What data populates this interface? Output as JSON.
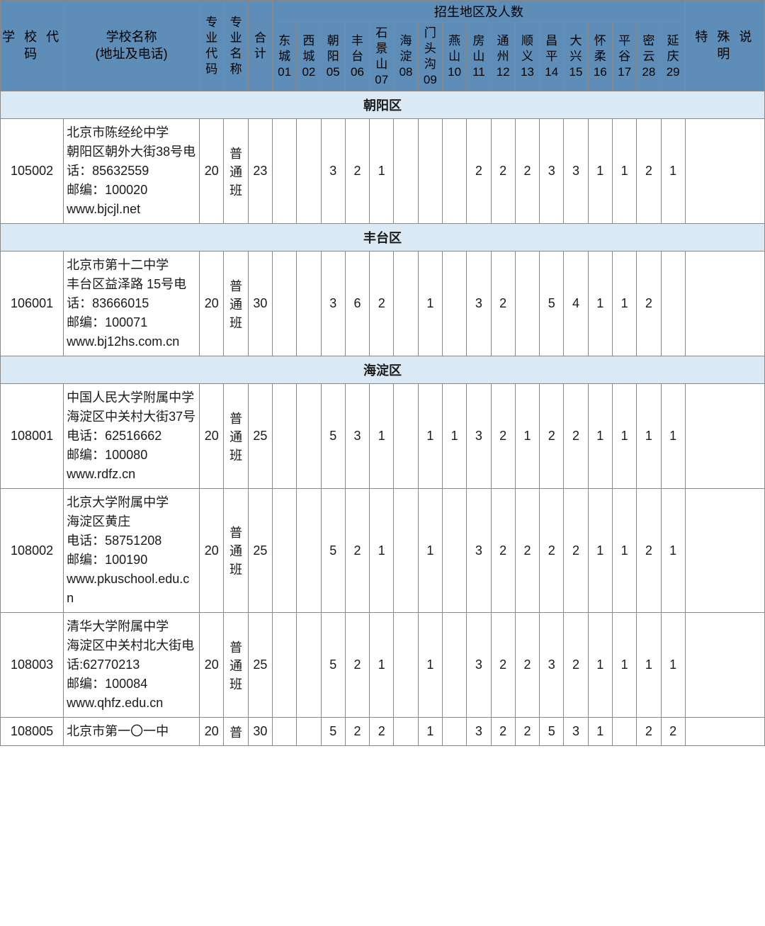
{
  "header": {
    "school_code": "学校代码",
    "school_name": "学校名称\n(地址及电话)",
    "major_code": "专业代码",
    "major_name": "专业名称",
    "total": "合计",
    "regions_title": "招生地区及人数",
    "special_note": "特殊说明",
    "regions": [
      {
        "label": "东城",
        "code": "01"
      },
      {
        "label": "西城",
        "code": "02"
      },
      {
        "label": "朝阳",
        "code": "05"
      },
      {
        "label": "丰台",
        "code": "06"
      },
      {
        "label": "石景山",
        "code": "07"
      },
      {
        "label": "海淀",
        "code": "08"
      },
      {
        "label": "门头沟",
        "code": "09"
      },
      {
        "label": "燕山",
        "code": "10"
      },
      {
        "label": "房山",
        "code": "11"
      },
      {
        "label": "通州",
        "code": "12"
      },
      {
        "label": "顺义",
        "code": "13"
      },
      {
        "label": "昌平",
        "code": "14"
      },
      {
        "label": "大兴",
        "code": "15"
      },
      {
        "label": "怀柔",
        "code": "16"
      },
      {
        "label": "平谷",
        "code": "17"
      },
      {
        "label": "密云",
        "code": "28"
      },
      {
        "label": "延庆",
        "code": "29"
      }
    ]
  },
  "sections": [
    {
      "district": "朝阳区",
      "rows": [
        {
          "code": "105002",
          "name": "北京市陈经纶中学\n朝阳区朝外大街38号电话：85632559\n邮编：100020\nwww.bjcjl.net",
          "major_code": "20",
          "major_name": "普通班",
          "total": "23",
          "regions": [
            "",
            "",
            "3",
            "2",
            "1",
            "",
            "",
            "",
            "2",
            "2",
            "2",
            "3",
            "3",
            "1",
            "1",
            "2",
            "1"
          ],
          "note": ""
        }
      ]
    },
    {
      "district": "丰台区",
      "rows": [
        {
          "code": "106001",
          "name": "北京市第十二中学\n丰台区益泽路 15号电话：83666015\n邮编：100071\nwww.bj12hs.com.cn",
          "major_code": "20",
          "major_name": "普通班",
          "total": "30",
          "regions": [
            "",
            "",
            "3",
            "6",
            "2",
            "",
            "1",
            "",
            "3",
            "2",
            "",
            "5",
            "4",
            "1",
            "1",
            "2",
            ""
          ],
          "note": ""
        }
      ]
    },
    {
      "district": "海淀区",
      "rows": [
        {
          "code": "108001",
          "name": "中国人民大学附属中学\n海淀区中关村大街37号电话：62516662\n邮编：100080\nwww.rdfz.cn",
          "major_code": "20",
          "major_name": "普通班",
          "total": "25",
          "regions": [
            "",
            "",
            "5",
            "3",
            "1",
            "",
            "1",
            "1",
            "3",
            "2",
            "1",
            "2",
            "2",
            "1",
            "1",
            "1",
            "1"
          ],
          "note": ""
        },
        {
          "code": "108002",
          "name": "北京大学附属中学\n海淀区黄庄\n电话：58751208\n邮编：100190\nwww.pkuschool.edu.cn",
          "major_code": "20",
          "major_name": "普通班",
          "total": "25",
          "regions": [
            "",
            "",
            "5",
            "2",
            "1",
            "",
            "1",
            "",
            "3",
            "2",
            "2",
            "2",
            "2",
            "1",
            "1",
            "2",
            "1"
          ],
          "note": ""
        },
        {
          "code": "108003",
          "name": "清华大学附属中学\n海淀区中关村北大街电话:62770213\n邮编：100084\nwww.qhfz.edu.cn",
          "major_code": "20",
          "major_name": "普通班",
          "total": "25",
          "regions": [
            "",
            "",
            "5",
            "2",
            "1",
            "",
            "1",
            "",
            "3",
            "2",
            "2",
            "3",
            "2",
            "1",
            "1",
            "1",
            "1"
          ],
          "note": ""
        },
        {
          "code": "108005",
          "name": "北京市第一〇一中",
          "major_code": "20",
          "major_name": "普",
          "total": "30",
          "regions": [
            "",
            "",
            "5",
            "2",
            "2",
            "",
            "1",
            "",
            "3",
            "2",
            "2",
            "5",
            "3",
            "1",
            "",
            "2",
            "2"
          ],
          "note": ""
        }
      ]
    }
  ]
}
